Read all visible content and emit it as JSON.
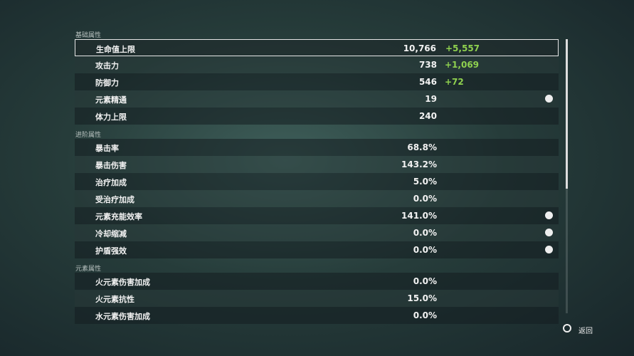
{
  "sections": [
    {
      "title": "基础属性",
      "rows": [
        {
          "label": "生命值上限",
          "value": "10,766",
          "bonus": "+5,557"
        },
        {
          "label": "攻击力",
          "value": "738",
          "bonus": "+1,069"
        },
        {
          "label": "防御力",
          "value": "546",
          "bonus": "+72"
        },
        {
          "label": "元素精通",
          "value": "19",
          "help": true
        },
        {
          "label": "体力上限",
          "value": "240"
        }
      ]
    },
    {
      "title": "进阶属性",
      "rows": [
        {
          "label": "暴击率",
          "value": "68.8%"
        },
        {
          "label": "暴击伤害",
          "value": "143.2%"
        },
        {
          "label": "治疗加成",
          "value": "5.0%"
        },
        {
          "label": "受治疗加成",
          "value": "0.0%"
        },
        {
          "label": "元素充能效率",
          "value": "141.0%",
          "help": true
        },
        {
          "label": "冷却缩减",
          "value": "0.0%",
          "help": true
        },
        {
          "label": "护盾强效",
          "value": "0.0%",
          "help": true
        }
      ]
    },
    {
      "title": "元素属性",
      "rows": [
        {
          "label": "火元素伤害加成",
          "value": "0.0%"
        },
        {
          "label": "火元素抗性",
          "value": "15.0%"
        },
        {
          "label": "水元素伤害加成",
          "value": "0.0%"
        }
      ]
    }
  ],
  "footer": {
    "back": "返回"
  }
}
